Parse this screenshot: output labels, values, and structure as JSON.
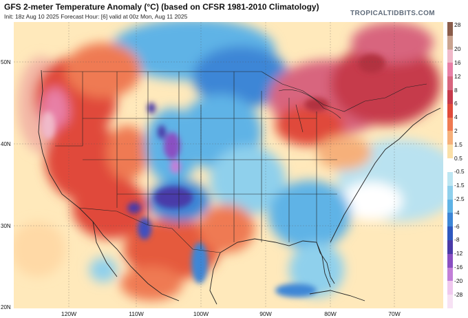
{
  "header": {
    "title": "GFS 2-meter Temperature Anomaly (°C) (based on CFSR 1981-2010 Climatology)",
    "subtitle": "Init: 18z Aug 10 2025   Forecast Hour: [6]   valid at 00z Mon, Aug 11 2025",
    "brand": "TROPICALTIDBITS.COM"
  },
  "map": {
    "type": "anomaly-map",
    "region": "CONUS",
    "lat_labels": [
      "50N",
      "40N",
      "30N",
      "20N"
    ],
    "lon_labels": [
      "120W",
      "110W",
      "100W",
      "90W",
      "80W",
      "70W"
    ],
    "anomaly_pattern": [
      {
        "area": "Pacific Northwest / West Coast",
        "sign": "warm",
        "approx_c": 6
      },
      {
        "area": "Southwest / Mexico",
        "sign": "warm",
        "approx_c": 4
      },
      {
        "area": "Northern Plains / Upper Midwest",
        "sign": "cool",
        "approx_c": -4
      },
      {
        "area": "Central Rockies / Southern Plains",
        "sign": "cool",
        "approx_c": -8
      },
      {
        "area": "Southeast",
        "sign": "cool",
        "approx_c": -3
      },
      {
        "area": "Great Lakes / Northeast / Eastern Canada",
        "sign": "warm",
        "approx_c": 8
      }
    ]
  },
  "colorbar": {
    "labels": [
      "28",
      "20",
      "16",
      "12",
      "8",
      "6",
      "4",
      "2",
      "1.5",
      "0.5",
      "-0.5",
      "-1.5",
      "-2.5",
      "-4",
      "-6",
      "-8",
      "-12",
      "-16",
      "-20",
      "-28"
    ],
    "colors": [
      "#8a5c4a",
      "#c9a38f",
      "#f0b9c9",
      "#e87fa6",
      "#d8657e",
      "#c63a4b",
      "#e04a3a",
      "#ef7a52",
      "#f6b07a",
      "#fbe0a8",
      "#ffffff",
      "#bde6f2",
      "#8fd0ec",
      "#5fb3e6",
      "#3d86d6",
      "#2e58bf",
      "#4a3aa8",
      "#8a4fc2",
      "#c27fd8",
      "#efc8ee",
      "#f7e2f4"
    ]
  }
}
